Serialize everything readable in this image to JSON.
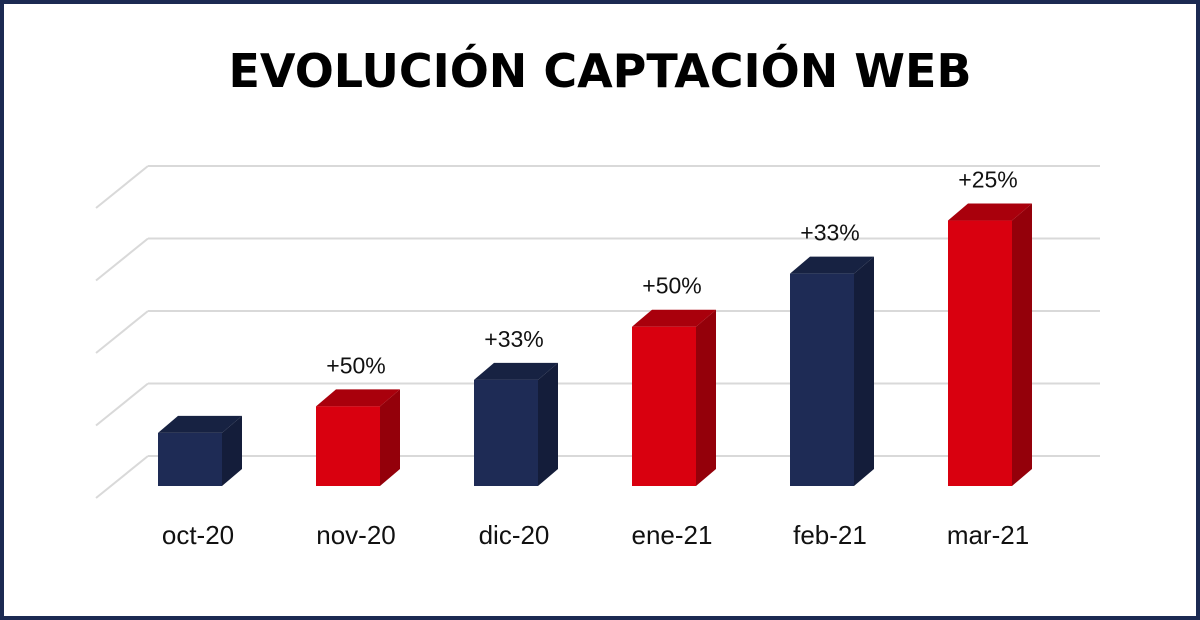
{
  "chart_data": {
    "type": "bar",
    "title": "EVOLUCIÓN CAPTACIÓN WEB",
    "categories": [
      "oct-20",
      "nov-20",
      "dic-20",
      "ene-21",
      "feb-21",
      "mar-21"
    ],
    "values": [
      8,
      12,
      16,
      24,
      32,
      40
    ],
    "data_labels": [
      "",
      "+50%",
      "+33%",
      "+50%",
      "+33%",
      "+25%"
    ],
    "colors": [
      "#1e2b55",
      "#d9000f",
      "#1e2b55",
      "#d9000f",
      "#1e2b55",
      "#d9000f"
    ],
    "ylim": [
      0,
      44
    ],
    "y_axis_labels_shown": false,
    "grid": true,
    "style": "3d-columns"
  }
}
